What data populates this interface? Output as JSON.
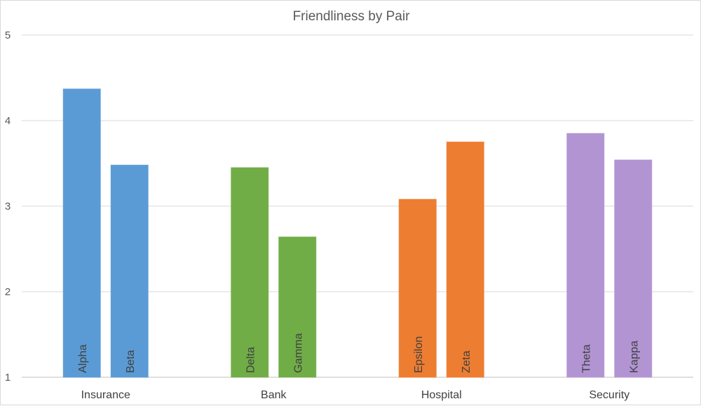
{
  "chart_data": {
    "type": "bar",
    "title": "Friendliness by Pair",
    "xlabel": "",
    "ylabel": "",
    "ylim": [
      1,
      5
    ],
    "yticks": [
      1,
      2,
      3,
      4,
      5
    ],
    "grid": true,
    "groups": [
      {
        "category": "Insurance",
        "color": "#5B9BD5",
        "bars": [
          {
            "label": "Alpha",
            "value": 4.37
          },
          {
            "label": "Beta",
            "value": 3.48
          }
        ]
      },
      {
        "category": "Bank",
        "color": "#70AD47",
        "bars": [
          {
            "label": "Delta",
            "value": 3.45
          },
          {
            "label": "Gamma",
            "value": 2.64
          }
        ]
      },
      {
        "category": "Hospital",
        "color": "#ED7D31",
        "bars": [
          {
            "label": "Epsilon",
            "value": 3.08
          },
          {
            "label": "Zeta",
            "value": 3.75
          }
        ]
      },
      {
        "category": "Security",
        "color": "#B294D3",
        "bars": [
          {
            "label": "Theta",
            "value": 3.85
          },
          {
            "label": "Kappa",
            "value": 3.54
          }
        ]
      }
    ]
  }
}
